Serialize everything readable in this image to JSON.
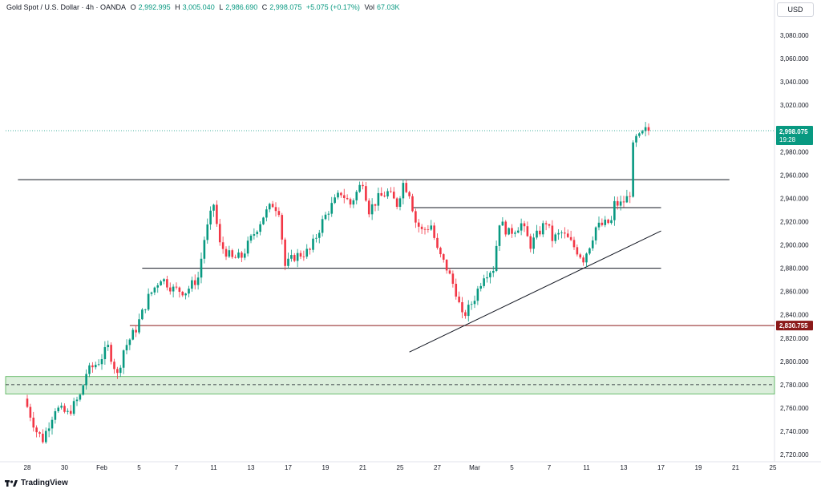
{
  "header": {
    "symbol": "Gold Spot / U.S. Dollar · 4h · OANDA",
    "open_label": "O",
    "open": "2,992.995",
    "high_label": "H",
    "high": "3,005.040",
    "low_label": "L",
    "low": "2,986.690",
    "close_label": "C",
    "close": "2,998.075",
    "change": "+5.075 (+0.17%)",
    "vol_label": "Vol",
    "vol": "67.03K"
  },
  "currency": "USD",
  "brand": "TradingView",
  "price_tag": {
    "price": "2,998.075",
    "countdown": "19:28"
  },
  "level_tag": {
    "price": "2,830.755"
  },
  "colors": {
    "up": "#089981",
    "down": "#f23645",
    "level": "#8b1a1a",
    "zone": "#cfe8cf"
  },
  "chart_data": {
    "type": "candlestick",
    "ylim": [
      2720,
      3100
    ],
    "y_ticks": [
      2720,
      2740,
      2760,
      2780,
      2800,
      2820,
      2840,
      2860,
      2880,
      2900,
      2920,
      2940,
      2960,
      2980,
      3000,
      3020,
      3040,
      3060,
      3080
    ],
    "y_tick_labels": [
      "2,720.000",
      "2,740.000",
      "2,760.000",
      "2,780.000",
      "2,800.000",
      "2,820.000",
      "2,840.000",
      "2,860.000",
      "2,880.000",
      "2,900.000",
      "2,920.000",
      "2,940.000",
      "2,960.000",
      "2,980.000",
      "3,000.000",
      "3,020.000",
      "3,040.000",
      "3,060.000",
      "3,080.000"
    ],
    "x_ticks": [
      {
        "label": "28",
        "slot": 0
      },
      {
        "label": "30",
        "slot": 12
      },
      {
        "label": "Feb",
        "slot": 24
      },
      {
        "label": "5",
        "slot": 36
      },
      {
        "label": "7",
        "slot": 48
      },
      {
        "label": "11",
        "slot": 60
      },
      {
        "label": "13",
        "slot": 72
      },
      {
        "label": "17",
        "slot": 84
      },
      {
        "label": "19",
        "slot": 96
      },
      {
        "label": "21",
        "slot": 108
      },
      {
        "label": "25",
        "slot": 120
      },
      {
        "label": "27",
        "slot": 132
      },
      {
        "label": "Mar",
        "slot": 144
      },
      {
        "label": "5",
        "slot": 156
      },
      {
        "label": "7",
        "slot": 168
      },
      {
        "label": "11",
        "slot": 180
      },
      {
        "label": "13",
        "slot": 192
      },
      {
        "label": "17",
        "slot": 204
      },
      {
        "label": "19",
        "slot": 216
      },
      {
        "label": "21",
        "slot": 228
      },
      {
        "label": "25",
        "slot": 240
      }
    ],
    "anchors": [
      [
        0,
        2768
      ],
      [
        4,
        2740
      ],
      [
        6,
        2733
      ],
      [
        10,
        2760
      ],
      [
        14,
        2755
      ],
      [
        18,
        2770
      ],
      [
        20,
        2790
      ],
      [
        24,
        2800
      ],
      [
        27,
        2812
      ],
      [
        30,
        2788
      ],
      [
        32,
        2810
      ],
      [
        36,
        2828
      ],
      [
        40,
        2855
      ],
      [
        44,
        2872
      ],
      [
        48,
        2862
      ],
      [
        52,
        2860
      ],
      [
        56,
        2872
      ],
      [
        58,
        2905
      ],
      [
        61,
        2935
      ],
      [
        63,
        2900
      ],
      [
        67,
        2888
      ],
      [
        70,
        2890
      ],
      [
        73,
        2905
      ],
      [
        77,
        2925
      ],
      [
        80,
        2935
      ],
      [
        82,
        2930
      ],
      [
        84,
        2882
      ],
      [
        87,
        2890
      ],
      [
        92,
        2895
      ],
      [
        96,
        2920
      ],
      [
        98,
        2930
      ],
      [
        102,
        2945
      ],
      [
        105,
        2935
      ],
      [
        107,
        2945
      ],
      [
        109,
        2955
      ],
      [
        111,
        2930
      ],
      [
        114,
        2940
      ],
      [
        117,
        2945
      ],
      [
        120,
        2935
      ],
      [
        122,
        2953
      ],
      [
        124,
        2945
      ],
      [
        126,
        2920
      ],
      [
        128,
        2912
      ],
      [
        131,
        2917
      ],
      [
        133,
        2895
      ],
      [
        136,
        2880
      ],
      [
        139,
        2860
      ],
      [
        141,
        2838
      ],
      [
        143,
        2845
      ],
      [
        145,
        2855
      ],
      [
        148,
        2875
      ],
      [
        151,
        2880
      ],
      [
        153,
        2920
      ],
      [
        156,
        2910
      ],
      [
        160,
        2918
      ],
      [
        163,
        2900
      ],
      [
        166,
        2912
      ],
      [
        168,
        2920
      ],
      [
        170,
        2905
      ],
      [
        173,
        2910
      ],
      [
        175,
        2905
      ],
      [
        178,
        2895
      ],
      [
        180,
        2888
      ],
      [
        182,
        2900
      ],
      [
        184,
        2915
      ],
      [
        187,
        2918
      ],
      [
        189,
        2920
      ],
      [
        190,
        2935
      ],
      [
        192,
        2935
      ],
      [
        194,
        2940
      ],
      [
        195,
        2945
      ],
      [
        196,
        2990
      ],
      [
        198,
        2992
      ],
      [
        200,
        2998
      ]
    ],
    "horizontal_lines": [
      {
        "price": 2956,
        "from": -3,
        "to": 226,
        "color": "#131722"
      },
      {
        "price": 2932,
        "from": 124,
        "to": 204,
        "color": "#131722"
      },
      {
        "price": 2880,
        "from": 37,
        "to": 204,
        "color": "#131722"
      },
      {
        "price": 2830.755,
        "from": 33,
        "to": 250,
        "color": "#8b1a1a"
      }
    ],
    "trendline": {
      "from": [
        123,
        2808
      ],
      "to": [
        204,
        2912
      ]
    },
    "zone": {
      "top": 2787,
      "bottom": 2772,
      "mid": 2780
    },
    "current_price": 2998.075,
    "level_price": 2830.755
  }
}
